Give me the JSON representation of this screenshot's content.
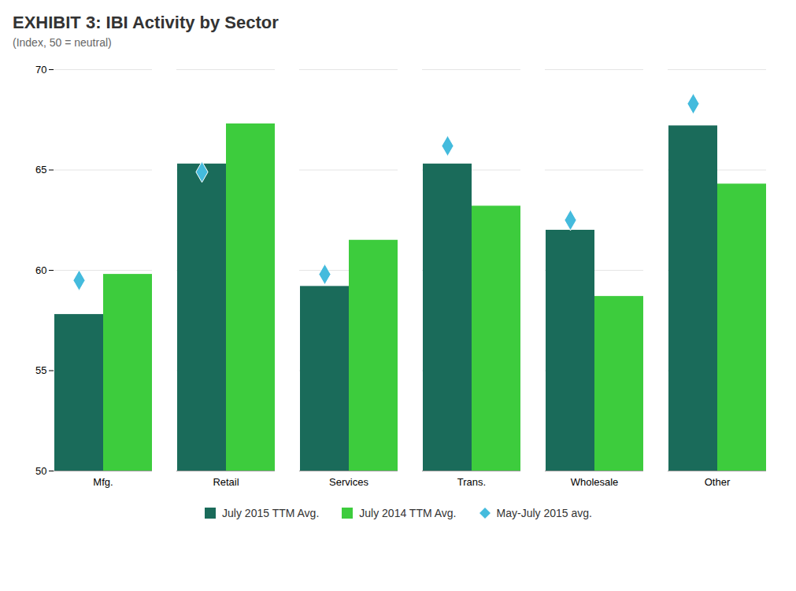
{
  "chart_data": {
    "type": "bar",
    "title": "EXHIBIT 3: IBI Activity by Sector",
    "subtitle": "(Index, 50 = neutral)",
    "categories": [
      "Mfg.",
      "Retail",
      "Services",
      "Trans.",
      "Wholesale",
      "Other"
    ],
    "series": [
      {
        "name": "July 2015 TTM Avg.",
        "type": "bar",
        "color": "#1a6b5a",
        "values": [
          57.8,
          65.3,
          59.2,
          65.3,
          62.0,
          67.2
        ]
      },
      {
        "name": "July 2014 TTM Avg.",
        "type": "bar",
        "color": "#3dcc3d",
        "values": [
          59.8,
          67.3,
          61.5,
          63.2,
          58.7,
          64.3
        ]
      },
      {
        "name": "May-July 2015 avg.",
        "type": "scatter",
        "marker": "diamond",
        "color": "#44bbdd",
        "values": [
          59.5,
          64.9,
          59.8,
          66.2,
          62.5,
          68.3
        ]
      }
    ],
    "ylim": [
      50,
      70
    ],
    "yticks": [
      50,
      55,
      60,
      65,
      70
    ],
    "grid": true,
    "legend": "bottom"
  }
}
